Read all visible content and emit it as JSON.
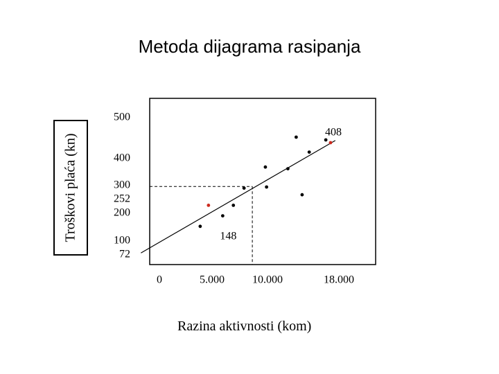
{
  "title": "Metoda dijagrama rasipanja",
  "chart_data": {
    "type": "scatter",
    "title": "Metoda dijagrama rasipanja",
    "xlabel": "Razina aktivnosti (kom)",
    "ylabel": "Troškovi plaća (kn)",
    "x_ticks": [
      "0",
      "5.000",
      "10.000",
      "18.000"
    ],
    "y_ticks": [
      "500",
      "400",
      "300",
      "252",
      "200",
      "100",
      "72"
    ],
    "points": [
      {
        "x": 3500,
        "y": 108,
        "color": "#000000"
      },
      {
        "x": 4200,
        "y": 184,
        "color": "#cc2a1e"
      },
      {
        "x": 5400,
        "y": 146,
        "color": "#000000"
      },
      {
        "x": 6300,
        "y": 184,
        "color": "#000000"
      },
      {
        "x": 7200,
        "y": 246,
        "color": "#000000"
      },
      {
        "x": 9000,
        "y": 322,
        "color": "#000000"
      },
      {
        "x": 9100,
        "y": 250,
        "color": "#000000"
      },
      {
        "x": 10900,
        "y": 316,
        "color": "#000000"
      },
      {
        "x": 11600,
        "y": 430,
        "color": "#000000"
      },
      {
        "x": 12100,
        "y": 222,
        "color": "#000000"
      },
      {
        "x": 12700,
        "y": 376,
        "color": "#000000"
      },
      {
        "x": 14100,
        "y": 420,
        "color": "#000000"
      },
      {
        "x": 14500,
        "y": 410,
        "color": "#cc2a1e"
      }
    ],
    "labeled_points": [
      {
        "label": "148",
        "x": 4000,
        "y": 148
      },
      {
        "label": "408",
        "x": 14500,
        "y": 408
      }
    ],
    "trend_line": {
      "x": [
        -1500,
        14900
      ],
      "y": 0
    },
    "reference": {
      "x": 7900,
      "y": 252
    },
    "grid": false,
    "legend": "none"
  },
  "colors": {
    "highlight": "#cc2a1e",
    "ink": "#000000"
  }
}
